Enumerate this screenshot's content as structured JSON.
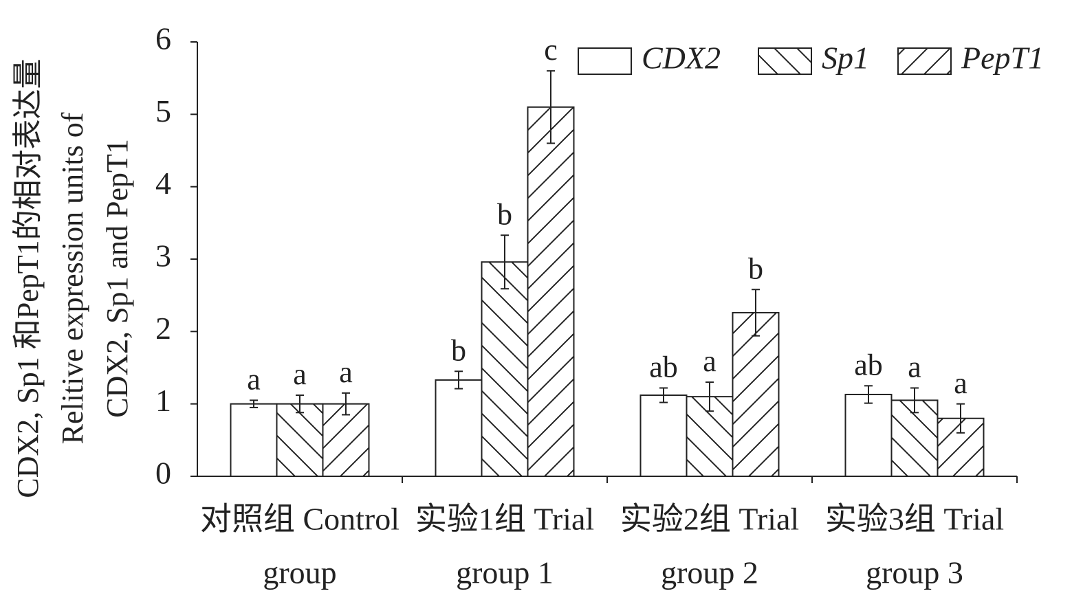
{
  "chart_data": {
    "type": "bar",
    "y_label": [
      "CDX2, Sp1 和PepT1的相对表达量",
      "Relitive expression units of",
      "CDX2, Sp1 and PepT1"
    ],
    "categories": [
      [
        "对照组 Control",
        "group"
      ],
      [
        "实验1组 Trial",
        "group 1"
      ],
      [
        "实验2组 Trial",
        "group 2"
      ],
      [
        "实验3组 Trial",
        "group 3"
      ]
    ],
    "series": [
      {
        "name": "CDX2",
        "color": "#ffffff",
        "hatch": "none",
        "values": [
          1.0,
          1.33,
          1.12,
          1.13
        ],
        "errors": [
          0.05,
          0.12,
          0.1,
          0.12
        ],
        "letters": [
          "a",
          "b",
          "ab",
          "ab"
        ]
      },
      {
        "name": "Sp1",
        "color": "#ffffff",
        "hatch": "backslash",
        "values": [
          1.0,
          2.96,
          1.1,
          1.05
        ],
        "errors": [
          0.12,
          0.37,
          0.2,
          0.17
        ],
        "letters": [
          "a",
          "b",
          "a",
          "a"
        ]
      },
      {
        "name": "PepT1",
        "color": "#ffffff",
        "hatch": "slash",
        "values": [
          1.0,
          5.1,
          2.26,
          0.8
        ],
        "errors": [
          0.15,
          0.5,
          0.32,
          0.2
        ],
        "letters": [
          "a",
          "c",
          "b",
          "a"
        ]
      }
    ],
    "ylim": [
      0,
      6
    ],
    "yticks": [
      0,
      1,
      2,
      3,
      4,
      5,
      6
    ],
    "legend": "top-right"
  }
}
